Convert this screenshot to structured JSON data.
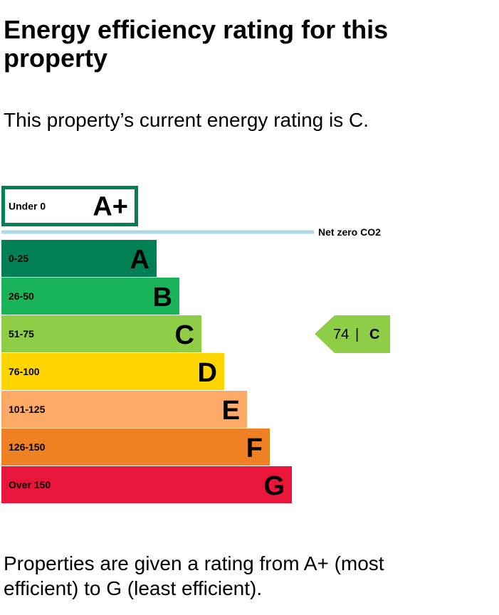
{
  "page": {
    "title": "Energy efficiency rating for this property",
    "intro": "This property’s current energy rating is C.",
    "footer": "Properties are given a rating from A+ (most efficient) to G (least efficient)."
  },
  "chart_data": {
    "type": "bar",
    "categories": [
      "A+",
      "A",
      "B",
      "C",
      "D",
      "E",
      "F",
      "G"
    ],
    "bands": [
      {
        "letter": "A+",
        "range": "Under 0",
        "color": "#008054",
        "style": "outline"
      },
      {
        "letter": "A",
        "range": "0-25",
        "color": "#008054"
      },
      {
        "letter": "B",
        "range": "26-50",
        "color": "#19b459"
      },
      {
        "letter": "C",
        "range": "51-75",
        "color": "#8dce46"
      },
      {
        "letter": "D",
        "range": "76-100",
        "color": "#ffd500"
      },
      {
        "letter": "E",
        "range": "101-125",
        "color": "#fcaa65"
      },
      {
        "letter": "F",
        "range": "126-150",
        "color": "#ef8023"
      },
      {
        "letter": "G",
        "range": "Over 150",
        "color": "#e9153b"
      }
    ],
    "net_zero": {
      "label": "Net zero CO2",
      "color": "#add8e6"
    },
    "current": {
      "score": "74",
      "separator": "|",
      "letter": "C",
      "color": "#8dce46"
    }
  }
}
